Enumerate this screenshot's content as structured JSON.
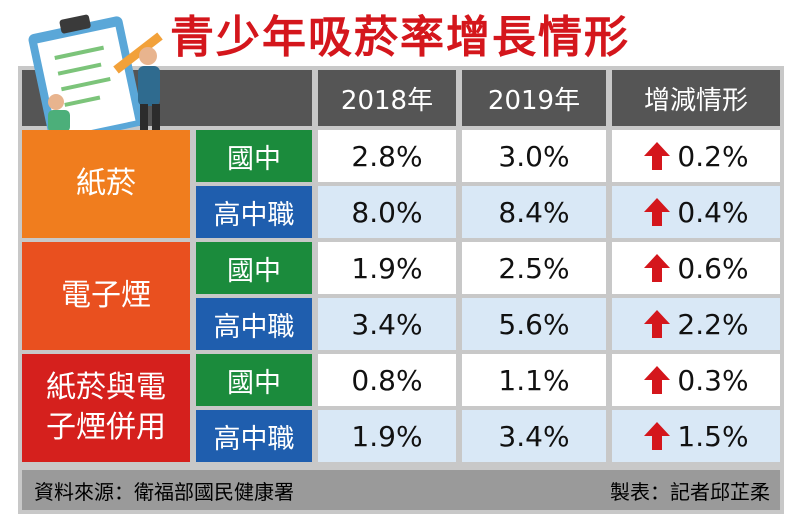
{
  "title": "青少年吸菸率增長情形",
  "header": [
    "2018年",
    "2019年",
    "增減情形"
  ],
  "groups": [
    {
      "label": "紙菸",
      "rows": [
        {
          "level": "國中",
          "values": [
            "2.8%",
            "3.0%",
            "0.2%"
          ]
        },
        {
          "level": "高中職",
          "values": [
            "8.0%",
            "8.4%",
            "0.4%"
          ]
        }
      ]
    },
    {
      "label": "電子煙",
      "rows": [
        {
          "level": "國中",
          "values": [
            "1.9%",
            "2.5%",
            "0.6%"
          ]
        },
        {
          "level": "高中職",
          "values": [
            "3.4%",
            "5.6%",
            "2.2%"
          ]
        }
      ]
    },
    {
      "label": "紙菸與電子煙併用",
      "rows": [
        {
          "level": "國中",
          "values": [
            "0.8%",
            "1.1%",
            "0.3%"
          ]
        },
        {
          "level": "高中職",
          "values": [
            "1.9%",
            "3.4%",
            "1.5%"
          ]
        }
      ]
    }
  ],
  "footer": {
    "source": "資料來源：衛福部國民健康署",
    "maker": "製表：記者邱芷柔"
  }
}
